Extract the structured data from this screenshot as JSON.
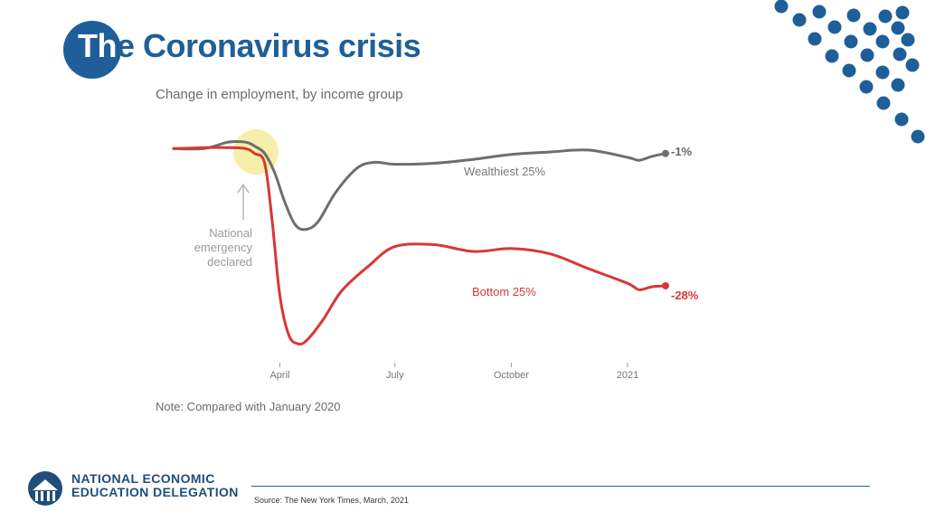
{
  "slide": {
    "title_lead": "Th",
    "title_rest": "e Coronavirus crisis",
    "source": "Source: The New York Times, March, 2021"
  },
  "org": {
    "line1": "NATIONAL ECONOMIC",
    "line2": "EDUCATION DELEGATION"
  },
  "colors": {
    "brand_blue": "#1f5f99",
    "wealthy_series": "#6e6e6e",
    "bottom_series": "#d93636",
    "highlight": "#f3ea8e"
  },
  "chart_data": {
    "type": "line",
    "title": "Change in employment, by income group",
    "note": "Note: Compared with January 2020",
    "xlabel": "",
    "ylabel": "",
    "x_unit": "date",
    "x_ticks": [
      {
        "label": "April",
        "date": "2020-04-01"
      },
      {
        "label": "July",
        "date": "2020-07-01"
      },
      {
        "label": "October",
        "date": "2020-10-01"
      },
      {
        "label": "2021",
        "date": "2021-01-01"
      }
    ],
    "xlim": [
      "2020-01-08",
      "2021-01-31"
    ],
    "ylim": [
      -40,
      3
    ],
    "grid": false,
    "legend": "none (direct labels)",
    "annotation": {
      "text_lines": [
        "National",
        "emergency",
        "declared"
      ],
      "date": "2020-03-13"
    },
    "series": [
      {
        "name": "Wealthiest 25%",
        "end_label": "-1%",
        "color": "#6e6e6e",
        "points": [
          [
            "2020-01-08",
            0
          ],
          [
            "2020-02-01",
            0
          ],
          [
            "2020-02-20",
            1.3
          ],
          [
            "2020-03-05",
            1.3
          ],
          [
            "2020-03-12",
            0.5
          ],
          [
            "2020-03-20",
            -1.0
          ],
          [
            "2020-03-28",
            -5.0
          ],
          [
            "2020-04-05",
            -11.0
          ],
          [
            "2020-04-13",
            -15.5
          ],
          [
            "2020-04-21",
            -16.5
          ],
          [
            "2020-05-01",
            -15.0
          ],
          [
            "2020-05-15",
            -9.0
          ],
          [
            "2020-06-01",
            -4.0
          ],
          [
            "2020-06-15",
            -2.8
          ],
          [
            "2020-07-01",
            -3.2
          ],
          [
            "2020-08-01",
            -3.0
          ],
          [
            "2020-09-01",
            -2.2
          ],
          [
            "2020-10-01",
            -1.2
          ],
          [
            "2020-11-01",
            -0.7
          ],
          [
            "2020-12-01",
            -0.3
          ],
          [
            "2021-01-01",
            -1.8
          ],
          [
            "2021-01-10",
            -2.4
          ],
          [
            "2021-01-20",
            -1.6
          ],
          [
            "2021-01-31",
            -1.0
          ]
        ]
      },
      {
        "name": "Bottom 25%",
        "end_label": "-28%",
        "color": "#d93636",
        "points": [
          [
            "2020-01-08",
            0
          ],
          [
            "2020-02-01",
            0.2
          ],
          [
            "2020-02-20",
            0.2
          ],
          [
            "2020-03-05",
            0
          ],
          [
            "2020-03-12",
            -1.0
          ],
          [
            "2020-03-20",
            -3.0
          ],
          [
            "2020-03-26",
            -15.0
          ],
          [
            "2020-04-01",
            -30.0
          ],
          [
            "2020-04-08",
            -38.0
          ],
          [
            "2020-04-15",
            -39.8
          ],
          [
            "2020-04-22",
            -39.2
          ],
          [
            "2020-05-05",
            -35.0
          ],
          [
            "2020-05-20",
            -29.0
          ],
          [
            "2020-06-10",
            -24.0
          ],
          [
            "2020-07-01",
            -20.0
          ],
          [
            "2020-08-01",
            -19.6
          ],
          [
            "2020-09-01",
            -21.0
          ],
          [
            "2020-10-01",
            -20.4
          ],
          [
            "2020-11-01",
            -21.5
          ],
          [
            "2020-12-01",
            -24.5
          ],
          [
            "2021-01-01",
            -27.5
          ],
          [
            "2021-01-10",
            -28.8
          ],
          [
            "2021-01-20",
            -28.2
          ],
          [
            "2021-01-31",
            -28.0
          ]
        ]
      }
    ]
  }
}
